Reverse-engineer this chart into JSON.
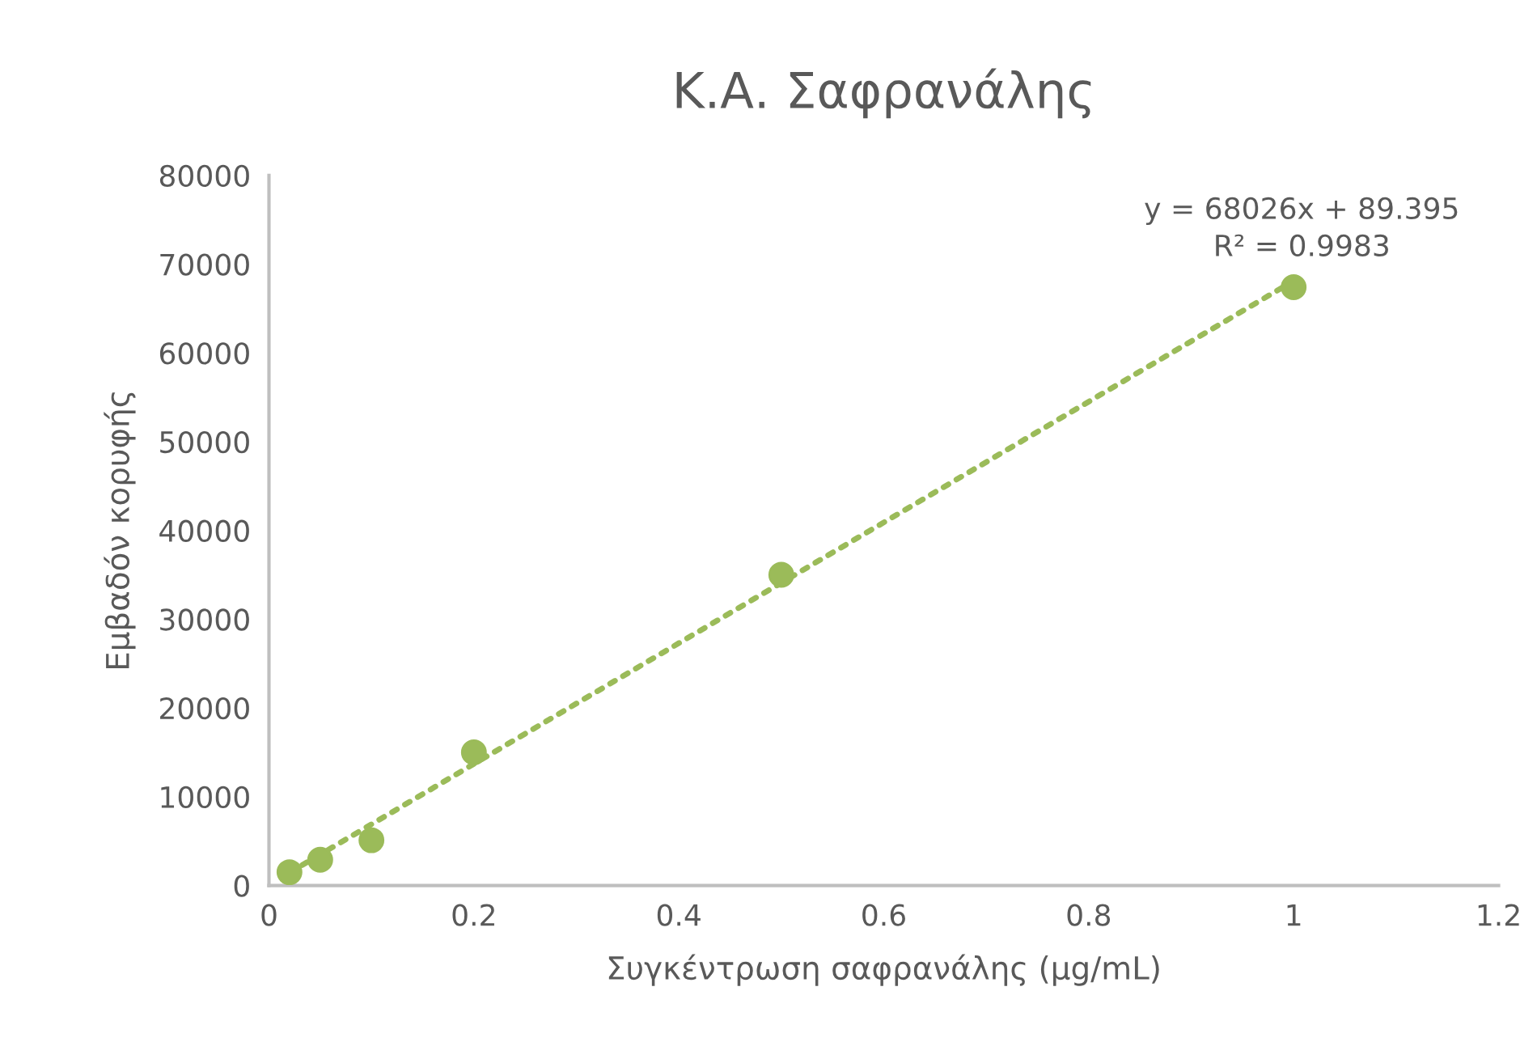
{
  "chart_data": {
    "type": "scatter",
    "title": "Κ.Α. Σαφρανάλης",
    "xlabel": "Συγκέντρωση σαφρανάλης (μg/mL)",
    "ylabel": "Εμβαδόν κορυφής",
    "x": [
      0.02,
      0.05,
      0.1,
      0.2,
      0.5,
      1
    ],
    "series": [
      {
        "color": "#9bbb59",
        "values": [
          1500,
          2900,
          5100,
          15000,
          35000,
          67400
        ],
        "marker": "circle"
      },
      {
        "type": "line",
        "color": "#9bbb59",
        "x": [
          0.02,
          1
        ],
        "values": [
          1450,
          68115
        ],
        "line_style": "dotted",
        "marker": "none"
      }
    ],
    "annotations": [
      "y = 68026x + 89.395\nR² = 0.9983"
    ],
    "xlim": [
      0,
      1.2
    ],
    "xticks": [
      0,
      0.2,
      0.4,
      0.6,
      0.8,
      1,
      1.2
    ],
    "ylim": [
      0,
      80000
    ],
    "yticks": [
      0,
      10000,
      20000,
      30000,
      40000,
      50000,
      60000,
      70000,
      80000
    ],
    "grid": false,
    "legend": false
  }
}
